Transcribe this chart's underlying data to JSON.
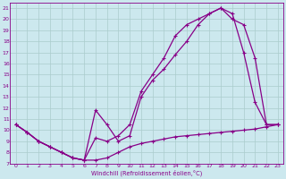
{
  "line1_x": [
    0,
    1,
    2,
    3,
    4,
    5,
    6,
    7,
    8,
    9,
    10,
    11,
    12,
    13,
    14,
    15,
    16,
    17,
    18,
    19,
    20,
    21,
    22,
    23
  ],
  "line1_y": [
    10.5,
    9.8,
    9.0,
    8.5,
    8.0,
    7.5,
    7.3,
    11.8,
    10.5,
    9.0,
    9.5,
    13.0,
    14.5,
    15.5,
    16.8,
    18.0,
    19.5,
    20.5,
    21.0,
    20.5,
    17.0,
    12.5,
    10.5,
    10.5
  ],
  "line2_x": [
    0,
    1,
    2,
    3,
    4,
    5,
    6,
    7,
    8,
    9,
    10,
    11,
    12,
    13,
    14,
    15,
    16,
    17,
    18,
    19,
    20,
    21,
    22,
    23
  ],
  "line2_y": [
    10.5,
    9.8,
    9.0,
    8.5,
    8.0,
    7.5,
    7.3,
    9.3,
    9.0,
    9.5,
    10.5,
    13.5,
    15.0,
    16.5,
    18.5,
    19.5,
    20.0,
    20.5,
    21.0,
    20.0,
    19.5,
    16.5,
    10.5,
    10.5
  ],
  "line3_x": [
    0,
    1,
    2,
    3,
    4,
    5,
    6,
    7,
    8,
    9,
    10,
    11,
    12,
    13,
    14,
    15,
    16,
    17,
    18,
    19,
    20,
    21,
    22,
    23
  ],
  "line3_y": [
    10.5,
    9.8,
    9.0,
    8.5,
    8.0,
    7.5,
    7.3,
    7.3,
    7.5,
    8.0,
    8.5,
    8.8,
    9.0,
    9.2,
    9.4,
    9.5,
    9.6,
    9.7,
    9.8,
    9.9,
    10.0,
    10.1,
    10.3,
    10.5
  ],
  "line_color": "#880088",
  "bg_color": "#cce8ee",
  "grid_color": "#aacccc",
  "xlabel": "Windchill (Refroidissement éolien,°C)",
  "xlim": [
    -0.5,
    23.5
  ],
  "ylim": [
    7,
    21.5
  ],
  "xticks": [
    0,
    1,
    2,
    3,
    4,
    5,
    6,
    7,
    8,
    9,
    10,
    11,
    12,
    13,
    14,
    15,
    16,
    17,
    18,
    19,
    20,
    21,
    22,
    23
  ],
  "yticks": [
    7,
    8,
    9,
    10,
    11,
    12,
    13,
    14,
    15,
    16,
    17,
    18,
    19,
    20,
    21
  ],
  "marker": "+"
}
